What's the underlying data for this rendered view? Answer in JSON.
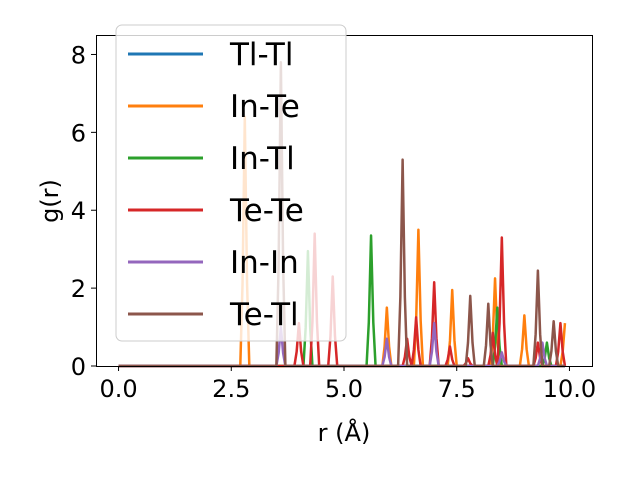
{
  "chart_data": {
    "type": "line",
    "xlabel": "r (Å)",
    "ylabel": "g(r)",
    "xlim": [
      -0.5,
      10.5
    ],
    "ylim": [
      0,
      8.5
    ],
    "xticks": [
      0.0,
      2.5,
      5.0,
      7.5,
      10.0
    ],
    "xtick_labels": [
      "0.0",
      "2.5",
      "5.0",
      "7.5",
      "10.0"
    ],
    "yticks": [
      0,
      2,
      4,
      6,
      8
    ],
    "ytick_labels": [
      "0",
      "2",
      "4",
      "6",
      "8"
    ],
    "grid": false,
    "legend_position": "top-left",
    "series": [
      {
        "name": "Tl-Tl",
        "color": "#1f77b4",
        "peaks": []
      },
      {
        "name": "In-Te",
        "color": "#ff7f0e",
        "peaks": [
          [
            2.8,
            6.4
          ],
          [
            5.95,
            1.5
          ],
          [
            6.65,
            3.5
          ],
          [
            7.4,
            1.95
          ],
          [
            8.35,
            2.25
          ],
          [
            9.0,
            1.3
          ],
          [
            9.9,
            1.1
          ]
        ]
      },
      {
        "name": "In-Tl",
        "color": "#2ca02c",
        "peaks": [
          [
            4.2,
            2.95
          ],
          [
            5.6,
            3.35
          ],
          [
            8.4,
            1.5
          ],
          [
            9.5,
            0.6
          ]
        ]
      },
      {
        "name": "Te-Te",
        "color": "#d62728",
        "peaks": [
          [
            4.0,
            1.1
          ],
          [
            4.35,
            3.4
          ],
          [
            4.75,
            2.3
          ],
          [
            6.4,
            0.7
          ],
          [
            6.6,
            1.25
          ],
          [
            7.0,
            2.15
          ],
          [
            7.35,
            0.5
          ],
          [
            7.75,
            0.2
          ],
          [
            8.3,
            0.85
          ],
          [
            8.5,
            3.3
          ],
          [
            9.3,
            0.6
          ],
          [
            9.8,
            1.1
          ]
        ]
      },
      {
        "name": "In-In",
        "color": "#9467bd",
        "peaks": [
          [
            3.6,
            1.0
          ],
          [
            5.95,
            0.7
          ],
          [
            7.0,
            1.1
          ],
          [
            8.5,
            0.35
          ],
          [
            9.4,
            0.6
          ]
        ]
      },
      {
        "name": "Te-Tl",
        "color": "#8c564b",
        "peaks": [
          [
            3.6,
            7.8
          ],
          [
            6.3,
            5.3
          ],
          [
            7.8,
            1.8
          ],
          [
            8.2,
            1.6
          ],
          [
            9.3,
            2.45
          ],
          [
            9.65,
            1.15
          ]
        ]
      }
    ]
  }
}
